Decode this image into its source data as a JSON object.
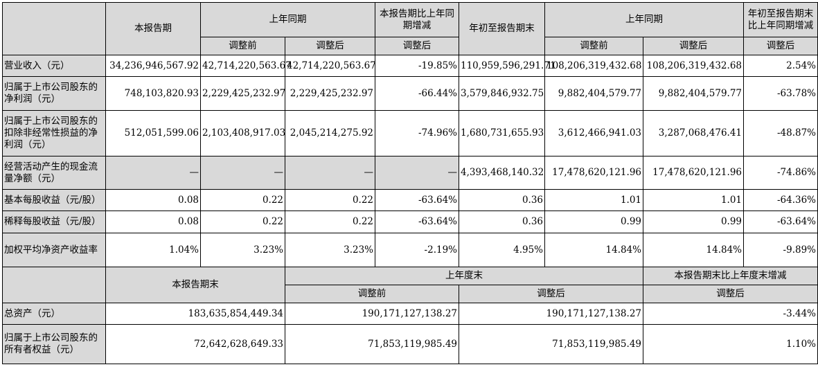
{
  "top": {
    "headers": {
      "current": "本报告期",
      "prior_same": "上年同期",
      "change_vs_prior": "本报告期比上年同期增减",
      "ytd_end": "年初至报告期末",
      "prior_same_ytd": "上年同期",
      "ytd_change": "年初至报告期末比上年同期增减",
      "before_adj": "调整前",
      "after_adj": "调整后"
    },
    "rows": [
      {
        "label": "营业收入（元）",
        "v": [
          "34,236,946,567.92",
          "42,714,220,563.67",
          "42,714,220,563.67",
          "-19.85%",
          "110,959,596,291.71",
          "108,206,319,432.68",
          "108,206,319,432.68",
          "2.54%"
        ]
      },
      {
        "label": "归属于上市公司股东的净利润（元）",
        "v": [
          "748,103,820.93",
          "2,229,425,232.97",
          "2,229,425,232.97",
          "-66.44%",
          "3,579,846,932.75",
          "9,882,404,579.77",
          "9,882,404,579.77",
          "-63.78%"
        ]
      },
      {
        "label": "归属于上市公司股东的扣除非经常性损益的净利润（元）",
        "v": [
          "512,051,599.06",
          "2,103,408,917.03",
          "2,045,214,275.92",
          "-74.96%",
          "1,680,731,655.93",
          "3,612,466,941.03",
          "3,287,068,476.41",
          "-48.87%"
        ]
      },
      {
        "label": "经营活动产生的现金流量净额（元）",
        "v": [
          "—",
          "—",
          "—",
          "—",
          "4,393,468,140.32",
          "17,478,620,121.96",
          "17,478,620,121.96",
          "-74.86%"
        ]
      },
      {
        "label": "基本每股收益（元/股）",
        "v": [
          "0.08",
          "0.22",
          "0.22",
          "-63.64%",
          "0.36",
          "1.01",
          "1.01",
          "-64.36%"
        ]
      },
      {
        "label": "稀释每股收益（元/股）",
        "v": [
          "0.08",
          "0.22",
          "0.22",
          "-63.64%",
          "0.36",
          "0.99",
          "0.99",
          "-63.64%"
        ]
      },
      {
        "label": "加权平均净资产收益率",
        "v": [
          "1.04%",
          "3.23%",
          "3.23%",
          "-2.19%",
          "4.95%",
          "14.84%",
          "14.84%",
          "-9.89%"
        ]
      }
    ]
  },
  "bottom": {
    "headers": {
      "period_end": "本报告期末",
      "prior_year_end": "上年度末",
      "change_vs_year_end": "本报告期末比上年度末增减",
      "before_adj": "调整前",
      "after_adj": "调整后",
      "after_adj_change": "调整后"
    },
    "rows": [
      {
        "label": "总资产（元）",
        "v": [
          "183,635,854,449.34",
          "190,171,127,138.27",
          "190,171,127,138.27",
          "-3.44%"
        ]
      },
      {
        "label": "归属于上市公司股东的所有者权益（元）",
        "v": [
          "72,642,628,649.33",
          "71,853,119,985.49",
          "71,853,119,985.49",
          "1.10%"
        ]
      }
    ]
  }
}
